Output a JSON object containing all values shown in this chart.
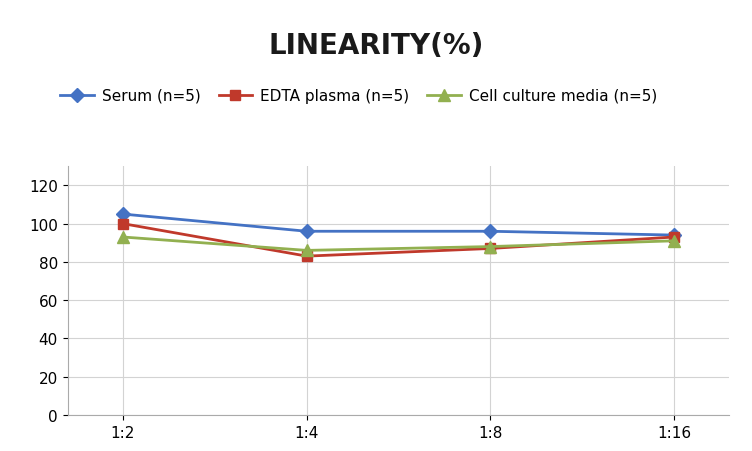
{
  "title": "LINEARITY(%)",
  "x_labels": [
    "1:2",
    "1:4",
    "1:8",
    "1:16"
  ],
  "x_positions": [
    0,
    1,
    2,
    3
  ],
  "series": [
    {
      "label": "Serum (n=5)",
      "values": [
        105,
        96,
        96,
        94
      ],
      "color": "#4472C4",
      "marker": "D",
      "markersize": 7,
      "linewidth": 2
    },
    {
      "label": "EDTA plasma (n=5)",
      "values": [
        100,
        83,
        87,
        93
      ],
      "color": "#C0392B",
      "marker": "s",
      "markersize": 7,
      "linewidth": 2
    },
    {
      "label": "Cell culture media (n=5)",
      "values": [
        93,
        86,
        88,
        91
      ],
      "color": "#92B050",
      "marker": "^",
      "markersize": 8,
      "linewidth": 2
    }
  ],
  "ylim": [
    0,
    130
  ],
  "yticks": [
    0,
    20,
    40,
    60,
    80,
    100,
    120
  ],
  "background_color": "#FFFFFF",
  "grid_color": "#D3D3D3",
  "title_fontsize": 20,
  "legend_fontsize": 11,
  "tick_fontsize": 11
}
